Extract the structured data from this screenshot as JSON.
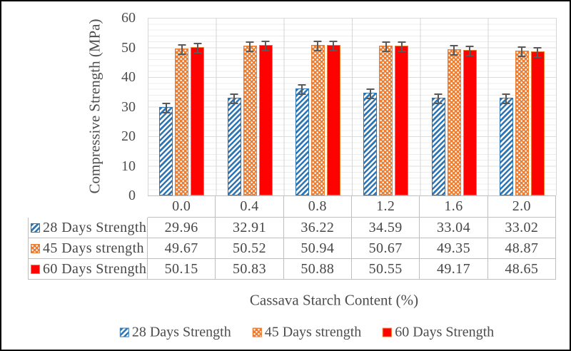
{
  "figure": {
    "background": "#FFFFFF",
    "border_color": "#000000"
  },
  "chart_data": {
    "type": "bar",
    "title": "",
    "categories": [
      "0.0",
      "0.4",
      "0.8",
      "1.2",
      "1.6",
      "2.0"
    ],
    "series": [
      {
        "name": "28 Days Strength",
        "values": [
          29.96,
          32.91,
          36.22,
          34.59,
          33.04,
          33.02
        ],
        "color": "#2E75B6",
        "pattern": "blue-diagonal-stripes"
      },
      {
        "name": "45 Days strength",
        "values": [
          49.67,
          50.52,
          50.94,
          50.67,
          49.35,
          48.87
        ],
        "color": "#ED7D31",
        "pattern": "orange-white-dots"
      },
      {
        "name": "60 Days Strength",
        "values": [
          50.15,
          50.83,
          50.88,
          50.55,
          49.17,
          48.65
        ],
        "color": "#FF0000",
        "pattern": "red-solid"
      }
    ],
    "xlabel": "Cassava Starch Content (%)",
    "ylabel": "Compressive Strength (MPa)",
    "ylim": [
      0,
      60
    ],
    "yticks": [
      0,
      10,
      20,
      30,
      40,
      50,
      60
    ],
    "error_bars": true,
    "grid": "light horizontal minor gridlines every 2 units; vertical category separators",
    "legend_position": "bottom",
    "data_table_shown": true
  },
  "style": {
    "text_color": "#4D4D4D",
    "table_border_color": "#BFBFBF",
    "gridline_color": "#ECECEC",
    "error_bar_color": "#595959"
  }
}
